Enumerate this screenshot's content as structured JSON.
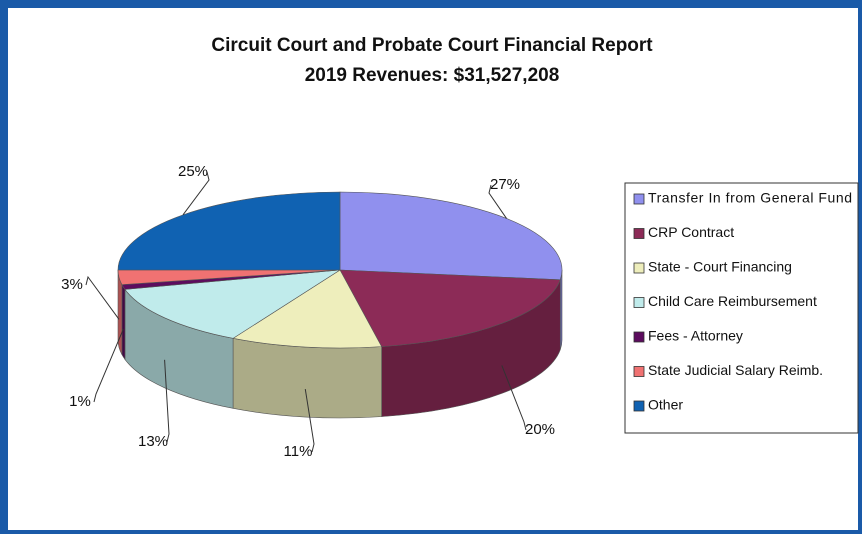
{
  "chart_data": {
    "type": "pie",
    "title": "Circuit Court and Probate Court Financial Report",
    "subtitle": "2019 Revenues:  $31,527,208",
    "categories": [
      "Transfer In from General Fund",
      "CRP Contract",
      "State - Court Financing",
      "Child Care Reimbursement",
      "Fees - Attorney",
      "State Judicial Salary Reimb.",
      "Other"
    ],
    "values": [
      27,
      20,
      11,
      13,
      1,
      3,
      25
    ],
    "value_labels": [
      "27%",
      "20%",
      "11%",
      "13%",
      "1%",
      "3%",
      "25%"
    ],
    "colors": [
      "#9090ee",
      "#8c2b57",
      "#eeeebc",
      "#c0ebeb",
      "#5c0c5e",
      "#f07272",
      "#1062b2"
    ],
    "legend": "right"
  }
}
